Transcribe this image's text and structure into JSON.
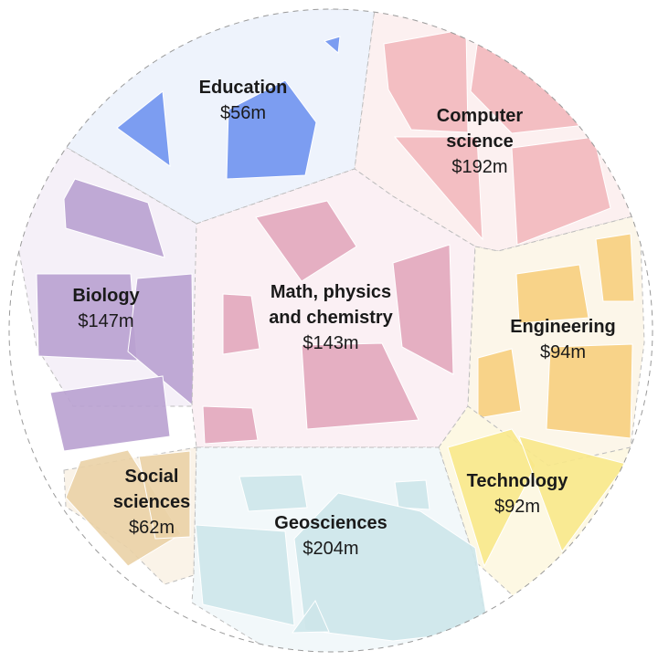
{
  "chart_data": {
    "type": "voronoi-treemap",
    "title": "",
    "unit": "$m",
    "series": [
      {
        "name_lines": [
          "Education"
        ],
        "value": 56,
        "value_label": "$56m",
        "color": "#6f93ef",
        "bg": "#eef3fc"
      },
      {
        "name_lines": [
          "Computer",
          "science"
        ],
        "value": 192,
        "value_label": "$192m",
        "color": "#f2b8bc",
        "bg": "#fcf0f0"
      },
      {
        "name_lines": [
          "Biology"
        ],
        "value": 147,
        "value_label": "$147m",
        "color": "#b9a1d0",
        "bg": "#f5f0f8"
      },
      {
        "name_lines": [
          "Math, physics",
          "and chemistry"
        ],
        "value": 143,
        "value_label": "$143m",
        "color": "#e2a7bd",
        "bg": "#fbf0f4"
      },
      {
        "name_lines": [
          "Engineering"
        ],
        "value": 94,
        "value_label": "$94m",
        "color": "#f7cf7e",
        "bg": "#fcf6e9"
      },
      {
        "name_lines": [
          "Social",
          "sciences"
        ],
        "value": 62,
        "value_label": "$62m",
        "color": "#ead2a6",
        "bg": "#faf3e8"
      },
      {
        "name_lines": [
          "Technology"
        ],
        "value": 92,
        "value_label": "$92m",
        "color": "#f8e88a",
        "bg": "#fdf8e3"
      },
      {
        "name_lines": [
          "Geosciences"
        ],
        "value": 204,
        "value_label": "$204m",
        "color": "#cde5ea",
        "bg": "#f2f8fa"
      }
    ]
  }
}
